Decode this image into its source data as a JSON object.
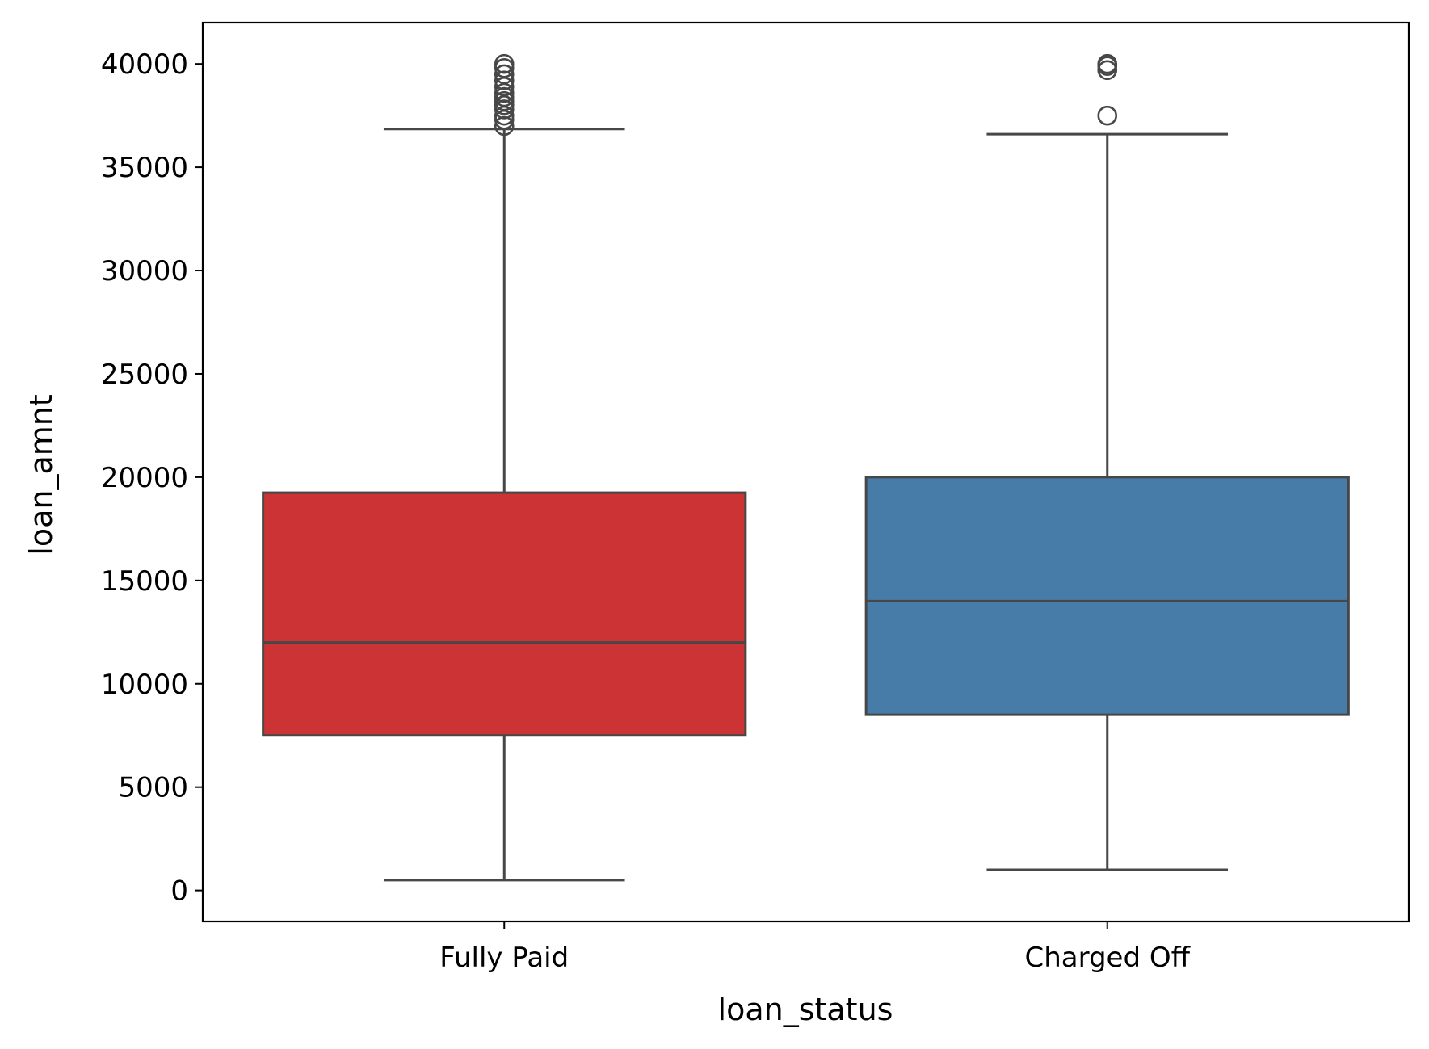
{
  "chart_data": {
    "type": "box",
    "xlabel": "loan_status",
    "ylabel": "loan_amnt",
    "ylim": [
      -1500,
      42000
    ],
    "yticks": [
      0,
      5000,
      10000,
      15000,
      20000,
      25000,
      30000,
      35000,
      40000
    ],
    "yticklabels": [
      "0",
      "5000",
      "10000",
      "15000",
      "20000",
      "25000",
      "30000",
      "35000",
      "40000"
    ],
    "grid": false,
    "categories": [
      "Fully Paid",
      "Charged Off"
    ],
    "boxes": [
      {
        "category": "Fully Paid",
        "color": "#cb3335",
        "whisker_low": 500,
        "q1": 7500,
        "median": 12000,
        "q3": 19250,
        "whisker_high": 36850,
        "outliers": [
          37000,
          37300,
          37500,
          37800,
          38000,
          38200,
          38400,
          38600,
          38900,
          39200,
          39500,
          39800,
          40000
        ]
      },
      {
        "category": "Charged Off",
        "color": "#477ca8",
        "whisker_low": 1000,
        "q1": 8500,
        "median": 14000,
        "q3": 20000,
        "whisker_high": 36600,
        "outliers": [
          37500,
          39700,
          39900,
          40000
        ]
      }
    ],
    "line_color": "#474747"
  }
}
